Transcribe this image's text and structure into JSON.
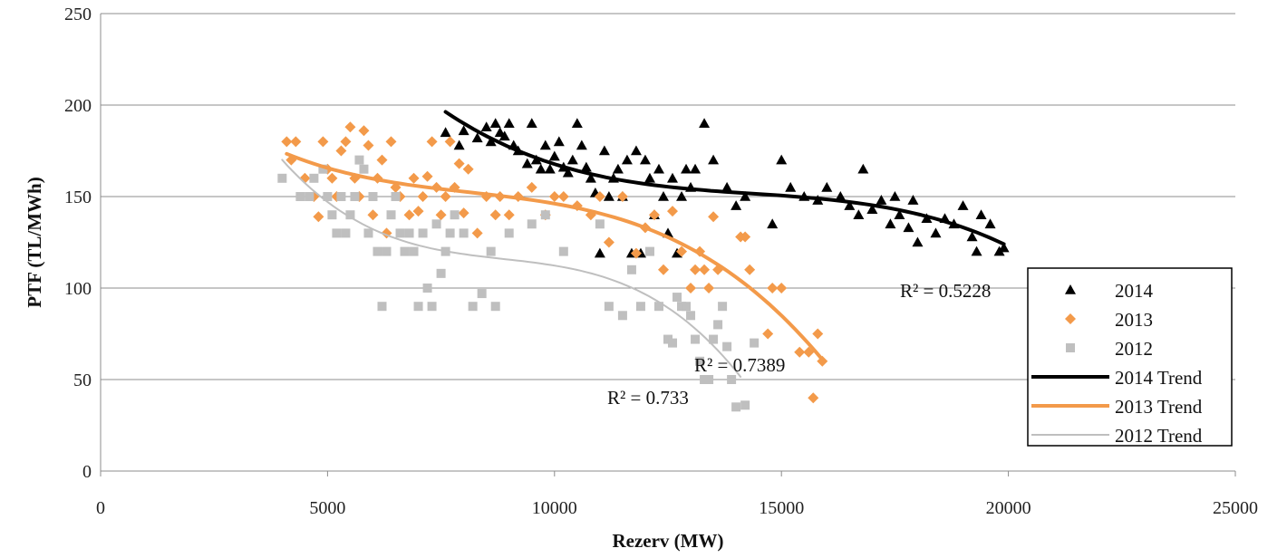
{
  "chart_data": {
    "type": "scatter",
    "xlabel": "Rezerv (MW)",
    "ylabel": "PTF (TL/MWh)",
    "xlim": [
      0,
      25000
    ],
    "ylim": [
      0,
      250
    ],
    "xticks": [
      0,
      5000,
      10000,
      15000,
      20000,
      25000
    ],
    "yticks": [
      0,
      50,
      100,
      150,
      200,
      250
    ],
    "grid": "horizontal",
    "legend": "right",
    "series": [
      {
        "name": "2014",
        "marker": "triangle",
        "color": "#000000",
        "points": [
          [
            7600,
            185
          ],
          [
            7900,
            178
          ],
          [
            8000,
            186
          ],
          [
            8300,
            182
          ],
          [
            8500,
            188
          ],
          [
            8600,
            180
          ],
          [
            8700,
            190
          ],
          [
            8800,
            185
          ],
          [
            8900,
            183
          ],
          [
            9000,
            190
          ],
          [
            9100,
            178
          ],
          [
            9200,
            175
          ],
          [
            9400,
            168
          ],
          [
            9500,
            190
          ],
          [
            9600,
            170
          ],
          [
            9700,
            165
          ],
          [
            9800,
            178
          ],
          [
            9900,
            165
          ],
          [
            10000,
            172
          ],
          [
            10100,
            180
          ],
          [
            10200,
            166
          ],
          [
            10300,
            163
          ],
          [
            10400,
            170
          ],
          [
            10500,
            190
          ],
          [
            10600,
            178
          ],
          [
            10700,
            166
          ],
          [
            10800,
            160
          ],
          [
            10900,
            152
          ],
          [
            11000,
            119
          ],
          [
            11100,
            175
          ],
          [
            11200,
            150
          ],
          [
            11300,
            160
          ],
          [
            11400,
            165
          ],
          [
            11500,
            150
          ],
          [
            11600,
            170
          ],
          [
            11700,
            119
          ],
          [
            11800,
            175
          ],
          [
            11900,
            119
          ],
          [
            12000,
            170
          ],
          [
            12100,
            160
          ],
          [
            12200,
            140
          ],
          [
            12300,
            165
          ],
          [
            12400,
            150
          ],
          [
            12500,
            130
          ],
          [
            12600,
            160
          ],
          [
            12700,
            119
          ],
          [
            12800,
            150
          ],
          [
            12900,
            165
          ],
          [
            13000,
            155
          ],
          [
            13100,
            165
          ],
          [
            13300,
            190
          ],
          [
            13500,
            170
          ],
          [
            13800,
            155
          ],
          [
            14000,
            145
          ],
          [
            14200,
            150
          ],
          [
            14800,
            135
          ],
          [
            15000,
            170
          ],
          [
            15200,
            155
          ],
          [
            15500,
            150
          ],
          [
            15800,
            148
          ],
          [
            16000,
            155
          ],
          [
            16300,
            150
          ],
          [
            16500,
            145
          ],
          [
            16700,
            140
          ],
          [
            16800,
            165
          ],
          [
            17000,
            143
          ],
          [
            17200,
            148
          ],
          [
            17400,
            135
          ],
          [
            17500,
            150
          ],
          [
            17600,
            140
          ],
          [
            17800,
            133
          ],
          [
            17900,
            148
          ],
          [
            18000,
            125
          ],
          [
            18200,
            138
          ],
          [
            18400,
            130
          ],
          [
            18600,
            138
          ],
          [
            18800,
            135
          ],
          [
            19000,
            145
          ],
          [
            19200,
            128
          ],
          [
            19300,
            120
          ],
          [
            19400,
            140
          ],
          [
            19600,
            135
          ],
          [
            19800,
            120
          ],
          [
            19900,
            122
          ]
        ]
      },
      {
        "name": "2013",
        "marker": "diamond",
        "color": "#f39a4a",
        "points": [
          [
            4100,
            180
          ],
          [
            4200,
            170
          ],
          [
            4300,
            180
          ],
          [
            4500,
            160
          ],
          [
            4700,
            150
          ],
          [
            4800,
            139
          ],
          [
            4900,
            180
          ],
          [
            5000,
            165
          ],
          [
            5100,
            160
          ],
          [
            5200,
            150
          ],
          [
            5300,
            175
          ],
          [
            5400,
            180
          ],
          [
            5500,
            188
          ],
          [
            5600,
            160
          ],
          [
            5700,
            150
          ],
          [
            5800,
            186
          ],
          [
            5900,
            178
          ],
          [
            6000,
            140
          ],
          [
            6100,
            160
          ],
          [
            6200,
            170
          ],
          [
            6300,
            130
          ],
          [
            6400,
            180
          ],
          [
            6500,
            155
          ],
          [
            6600,
            150
          ],
          [
            6800,
            140
          ],
          [
            6900,
            160
          ],
          [
            7000,
            142
          ],
          [
            7100,
            150
          ],
          [
            7200,
            161
          ],
          [
            7300,
            180
          ],
          [
            7400,
            155
          ],
          [
            7500,
            140
          ],
          [
            7600,
            150
          ],
          [
            7700,
            180
          ],
          [
            7800,
            155
          ],
          [
            7900,
            168
          ],
          [
            8000,
            141
          ],
          [
            8100,
            165
          ],
          [
            8300,
            130
          ],
          [
            8500,
            150
          ],
          [
            8700,
            140
          ],
          [
            8800,
            150
          ],
          [
            9000,
            140
          ],
          [
            9200,
            150
          ],
          [
            9500,
            155
          ],
          [
            9800,
            140
          ],
          [
            10000,
            150
          ],
          [
            10200,
            150
          ],
          [
            10500,
            145
          ],
          [
            10800,
            140
          ],
          [
            11000,
            150
          ],
          [
            11200,
            125
          ],
          [
            11500,
            150
          ],
          [
            11800,
            119
          ],
          [
            12000,
            133
          ],
          [
            12200,
            140
          ],
          [
            12400,
            110
          ],
          [
            12600,
            142
          ],
          [
            12800,
            120
          ],
          [
            13000,
            100
          ],
          [
            13100,
            110
          ],
          [
            13200,
            120
          ],
          [
            13300,
            110
          ],
          [
            13400,
            100
          ],
          [
            13500,
            139
          ],
          [
            13600,
            110
          ],
          [
            14100,
            128
          ],
          [
            14200,
            128
          ],
          [
            14300,
            110
          ],
          [
            14700,
            75
          ],
          [
            14800,
            100
          ],
          [
            15000,
            100
          ],
          [
            15400,
            65
          ],
          [
            15600,
            65
          ],
          [
            15700,
            40
          ],
          [
            15800,
            75
          ],
          [
            15900,
            60
          ]
        ]
      },
      {
        "name": "2012",
        "marker": "square",
        "color": "#bfbfbf",
        "points": [
          [
            4000,
            160
          ],
          [
            4400,
            150
          ],
          [
            4600,
            150
          ],
          [
            4700,
            160
          ],
          [
            4900,
            165
          ],
          [
            5000,
            150
          ],
          [
            5100,
            140
          ],
          [
            5200,
            130
          ],
          [
            5300,
            150
          ],
          [
            5400,
            130
          ],
          [
            5500,
            140
          ],
          [
            5600,
            150
          ],
          [
            5700,
            170
          ],
          [
            5800,
            165
          ],
          [
            5900,
            130
          ],
          [
            6000,
            150
          ],
          [
            6100,
            120
          ],
          [
            6200,
            90
          ],
          [
            6300,
            120
          ],
          [
            6400,
            140
          ],
          [
            6500,
            150
          ],
          [
            6600,
            130
          ],
          [
            6700,
            120
          ],
          [
            6800,
            130
          ],
          [
            6900,
            120
          ],
          [
            7000,
            90
          ],
          [
            7100,
            130
          ],
          [
            7200,
            100
          ],
          [
            7300,
            90
          ],
          [
            7400,
            135
          ],
          [
            7500,
            108
          ],
          [
            7600,
            120
          ],
          [
            7700,
            130
          ],
          [
            7800,
            140
          ],
          [
            8000,
            130
          ],
          [
            8200,
            90
          ],
          [
            8400,
            97
          ],
          [
            8600,
            120
          ],
          [
            8700,
            90
          ],
          [
            9000,
            130
          ],
          [
            9500,
            135
          ],
          [
            9800,
            140
          ],
          [
            10200,
            120
          ],
          [
            11000,
            135
          ],
          [
            11200,
            90
          ],
          [
            11500,
            85
          ],
          [
            11700,
            110
          ],
          [
            11900,
            90
          ],
          [
            12100,
            120
          ],
          [
            12300,
            90
          ],
          [
            12500,
            72
          ],
          [
            12600,
            70
          ],
          [
            12700,
            95
          ],
          [
            12800,
            90
          ],
          [
            12900,
            90
          ],
          [
            13000,
            85
          ],
          [
            13100,
            72
          ],
          [
            13200,
            60
          ],
          [
            13300,
            50
          ],
          [
            13400,
            50
          ],
          [
            13500,
            72
          ],
          [
            13600,
            80
          ],
          [
            13700,
            90
          ],
          [
            13800,
            68
          ],
          [
            13900,
            50
          ],
          [
            14000,
            35
          ],
          [
            14200,
            36
          ],
          [
            14400,
            70
          ]
        ]
      }
    ],
    "trends": [
      {
        "name": "2014 Trend",
        "color": "#000000",
        "width": 4,
        "x_range": [
          7600,
          19900
        ],
        "r2": "R² = 0.5228"
      },
      {
        "name": "2013 Trend",
        "color": "#f39a4a",
        "width": 4,
        "x_range": [
          4100,
          15900
        ],
        "r2": "R² = 0.7389"
      },
      {
        "name": "2012 Trend",
        "color": "#bfbfbf",
        "width": 2,
        "x_range": [
          4000,
          14100
        ],
        "r2": "R² = 0.733"
      }
    ]
  }
}
